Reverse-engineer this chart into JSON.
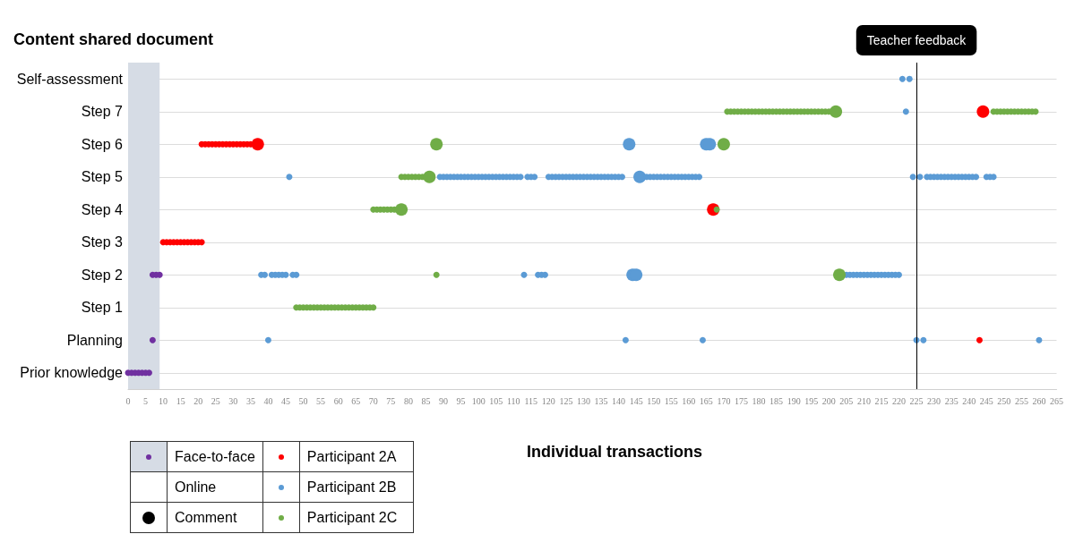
{
  "chart_data": {
    "type": "bubble",
    "orientation": "horizontal",
    "ylabel": "Content shared document",
    "xlabel": "Individual transactions",
    "categories": [
      "Self-assessment",
      "Step 7",
      "Step 6",
      "Step 5",
      "Step 4",
      "Step 3",
      "Step 2",
      "Step 1",
      "Planning",
      "Prior knowledge"
    ],
    "xlim": [
      0,
      265
    ],
    "xticks": [
      0,
      5,
      10,
      15,
      20,
      25,
      30,
      35,
      40,
      45,
      50,
      55,
      60,
      65,
      70,
      75,
      80,
      85,
      90,
      95,
      100,
      105,
      110,
      115,
      120,
      125,
      130,
      135,
      140,
      145,
      150,
      155,
      160,
      165,
      170,
      175,
      180,
      185,
      190,
      195,
      200,
      205,
      210,
      215,
      220,
      225,
      230,
      235,
      240,
      245,
      250,
      255,
      260,
      265
    ],
    "grid": "y",
    "marker": "circle",
    "legend": "bottom left",
    "annotations": [
      "Online",
      "Comment"
    ],
    "bands": [
      {
        "axis": "x",
        "from": 0,
        "to": 9,
        "color": "#d6dce5"
      }
    ],
    "ref_lines": [
      {
        "axis": "x",
        "value": 225,
        "label": "Teacher feedback",
        "color": "#000000"
      }
    ],
    "series": [
      {
        "name": "Face-to-face",
        "color": "#7030a0",
        "values": [
          0,
          1,
          2,
          3,
          4,
          5,
          6,
          7,
          7,
          8,
          9
        ],
        "x": [
          "Prior knowledge",
          "Prior knowledge",
          "Prior knowledge",
          "Prior knowledge",
          "Prior knowledge",
          "Prior knowledge",
          "Prior knowledge",
          "Planning",
          "Step 2",
          "Step 2",
          "Step 2"
        ],
        "sizes": [
          0.25,
          0.25,
          0.25,
          0.25,
          0.25,
          0.25,
          0.25,
          0.25,
          0.25,
          0.25,
          0.25
        ]
      },
      {
        "name": "Participant 2A",
        "color": "#ff0000",
        "values": [
          10,
          11,
          12,
          13,
          14,
          15,
          16,
          17,
          18,
          19,
          20,
          21,
          21,
          22,
          23,
          24,
          25,
          26,
          27,
          28,
          29,
          30,
          31,
          32,
          33,
          34,
          35,
          37,
          167,
          243,
          244
        ],
        "x": [
          "Step 3",
          "Step 3",
          "Step 3",
          "Step 3",
          "Step 3",
          "Step 3",
          "Step 3",
          "Step 3",
          "Step 3",
          "Step 3",
          "Step 3",
          "Step 3",
          "Step 6",
          "Step 6",
          "Step 6",
          "Step 6",
          "Step 6",
          "Step 6",
          "Step 6",
          "Step 6",
          "Step 6",
          "Step 6",
          "Step 6",
          "Step 6",
          "Step 6",
          "Step 6",
          "Step 6",
          "Step 6",
          "Step 4",
          "Planning",
          "Step 7"
        ],
        "sizes": [
          0.25,
          0.25,
          0.25,
          0.25,
          0.25,
          0.25,
          0.25,
          0.25,
          0.25,
          0.25,
          0.25,
          0.25,
          0.25,
          0.25,
          0.25,
          0.25,
          0.25,
          0.25,
          0.25,
          0.25,
          0.25,
          0.25,
          0.25,
          0.25,
          0.25,
          0.25,
          0.25,
          1,
          1,
          0.25,
          1
        ]
      },
      {
        "name": "Participant 2B",
        "color": "#5b9bd5",
        "values": [
          40,
          142,
          164,
          225,
          227,
          260,
          38,
          39,
          41,
          42,
          43,
          44,
          45,
          47,
          48,
          113,
          117,
          118,
          119,
          144,
          145,
          205,
          206,
          207,
          208,
          209,
          210,
          211,
          212,
          213,
          214,
          215,
          216,
          217,
          218,
          219,
          220,
          46,
          89,
          90,
          91,
          92,
          93,
          94,
          95,
          96,
          97,
          98,
          99,
          100,
          101,
          102,
          103,
          104,
          105,
          106,
          107,
          108,
          109,
          110,
          111,
          112,
          114,
          115,
          116,
          120,
          121,
          122,
          123,
          124,
          125,
          126,
          127,
          128,
          129,
          130,
          131,
          132,
          133,
          134,
          135,
          136,
          137,
          138,
          139,
          140,
          141,
          146,
          148,
          149,
          150,
          151,
          152,
          153,
          154,
          155,
          156,
          157,
          158,
          159,
          160,
          161,
          162,
          163,
          224,
          226,
          228,
          229,
          230,
          231,
          232,
          233,
          234,
          235,
          236,
          237,
          238,
          239,
          240,
          241,
          242,
          245,
          246,
          247,
          143,
          165,
          166,
          222,
          221,
          223
        ],
        "x": [
          "Planning",
          "Planning",
          "Planning",
          "Planning",
          "Planning",
          "Planning",
          "Step 2",
          "Step 2",
          "Step 2",
          "Step 2",
          "Step 2",
          "Step 2",
          "Step 2",
          "Step 2",
          "Step 2",
          "Step 2",
          "Step 2",
          "Step 2",
          "Step 2",
          "Step 2",
          "Step 2",
          "Step 2",
          "Step 2",
          "Step 2",
          "Step 2",
          "Step 2",
          "Step 2",
          "Step 2",
          "Step 2",
          "Step 2",
          "Step 2",
          "Step 2",
          "Step 2",
          "Step 2",
          "Step 2",
          "Step 2",
          "Step 2",
          "Step 5",
          "Step 5",
          "Step 5",
          "Step 5",
          "Step 5",
          "Step 5",
          "Step 5",
          "Step 5",
          "Step 5",
          "Step 5",
          "Step 5",
          "Step 5",
          "Step 5",
          "Step 5",
          "Step 5",
          "Step 5",
          "Step 5",
          "Step 5",
          "Step 5",
          "Step 5",
          "Step 5",
          "Step 5",
          "Step 5",
          "Step 5",
          "Step 5",
          "Step 5",
          "Step 5",
          "Step 5",
          "Step 5",
          "Step 5",
          "Step 5",
          "Step 5",
          "Step 5",
          "Step 5",
          "Step 5",
          "Step 5",
          "Step 5",
          "Step 5",
          "Step 5",
          "Step 5",
          "Step 5",
          "Step 5",
          "Step 5",
          "Step 5",
          "Step 5",
          "Step 5",
          "Step 5",
          "Step 5",
          "Step 5",
          "Step 5",
          "Step 5",
          "Step 5",
          "Step 5",
          "Step 5",
          "Step 5",
          "Step 5",
          "Step 5",
          "Step 5",
          "Step 5",
          "Step 5",
          "Step 5",
          "Step 5",
          "Step 5",
          "Step 5",
          "Step 5",
          "Step 5",
          "Step 5",
          "Step 5",
          "Step 5",
          "Step 5",
          "Step 5",
          "Step 5",
          "Step 5",
          "Step 5",
          "Step 5",
          "Step 5",
          "Step 5",
          "Step 5",
          "Step 5",
          "Step 5",
          "Step 5",
          "Step 5",
          "Step 5",
          "Step 5",
          "Step 5",
          "Step 5",
          "Step 5",
          "Step 6",
          "Step 6",
          "Step 6",
          "Step 7",
          "Self-assessment",
          "Self-assessment"
        ],
        "sizes": [
          0.25,
          0.25,
          0.25,
          0.25,
          0.25,
          0.25,
          0.25,
          0.25,
          0.25,
          0.25,
          0.25,
          0.25,
          0.25,
          0.25,
          0.25,
          0.25,
          0.25,
          0.25,
          0.25,
          1,
          1,
          0.25,
          0.25,
          0.25,
          0.25,
          0.25,
          0.25,
          0.25,
          0.25,
          0.25,
          0.25,
          0.25,
          0.25,
          0.25,
          0.25,
          0.25,
          0.25,
          0.25,
          0.25,
          0.25,
          0.25,
          0.25,
          0.25,
          0.25,
          0.25,
          0.25,
          0.25,
          0.25,
          0.25,
          0.25,
          0.25,
          0.25,
          0.25,
          0.25,
          0.25,
          0.25,
          0.25,
          0.25,
          0.25,
          0.25,
          0.25,
          0.25,
          0.25,
          0.25,
          0.25,
          0.25,
          0.25,
          0.25,
          0.25,
          0.25,
          0.25,
          0.25,
          0.25,
          0.25,
          0.25,
          0.25,
          0.25,
          0.25,
          0.25,
          0.25,
          0.25,
          0.25,
          0.25,
          0.25,
          0.25,
          0.25,
          0.25,
          1,
          0.25,
          0.25,
          0.25,
          0.25,
          0.25,
          0.25,
          0.25,
          0.25,
          0.25,
          0.25,
          0.25,
          0.25,
          0.25,
          0.25,
          0.25,
          0.25,
          0.25,
          0.25,
          0.25,
          0.25,
          0.25,
          0.25,
          0.25,
          0.25,
          0.25,
          0.25,
          0.25,
          0.25,
          0.25,
          0.25,
          0.25,
          0.25,
          0.25,
          0.25,
          0.25,
          0.25,
          1,
          1,
          1,
          0.25,
          0.25,
          0.25
        ]
      },
      {
        "name": "Participant 2C",
        "color": "#70ad47",
        "values": [
          48,
          49,
          50,
          51,
          52,
          53,
          54,
          55,
          56,
          57,
          58,
          59,
          60,
          61,
          62,
          63,
          64,
          65,
          66,
          67,
          68,
          69,
          70,
          70,
          71,
          72,
          73,
          74,
          75,
          76,
          78,
          168,
          78,
          79,
          80,
          81,
          82,
          83,
          84,
          86,
          88,
          203,
          88,
          170,
          171,
          172,
          173,
          174,
          175,
          176,
          177,
          178,
          179,
          180,
          181,
          182,
          183,
          184,
          185,
          186,
          187,
          188,
          189,
          190,
          191,
          192,
          193,
          194,
          195,
          196,
          197,
          198,
          199,
          200,
          202,
          247,
          248,
          249,
          250,
          251,
          252,
          253,
          254,
          255,
          256,
          257,
          258,
          259
        ],
        "x": [
          "Step 1",
          "Step 1",
          "Step 1",
          "Step 1",
          "Step 1",
          "Step 1",
          "Step 1",
          "Step 1",
          "Step 1",
          "Step 1",
          "Step 1",
          "Step 1",
          "Step 1",
          "Step 1",
          "Step 1",
          "Step 1",
          "Step 1",
          "Step 1",
          "Step 1",
          "Step 1",
          "Step 1",
          "Step 1",
          "Step 1",
          "Step 4",
          "Step 4",
          "Step 4",
          "Step 4",
          "Step 4",
          "Step 4",
          "Step 4",
          "Step 4",
          "Step 4",
          "Step 5",
          "Step 5",
          "Step 5",
          "Step 5",
          "Step 5",
          "Step 5",
          "Step 5",
          "Step 5",
          "Step 2",
          "Step 2",
          "Step 6",
          "Step 6",
          "Step 7",
          "Step 7",
          "Step 7",
          "Step 7",
          "Step 7",
          "Step 7",
          "Step 7",
          "Step 7",
          "Step 7",
          "Step 7",
          "Step 7",
          "Step 7",
          "Step 7",
          "Step 7",
          "Step 7",
          "Step 7",
          "Step 7",
          "Step 7",
          "Step 7",
          "Step 7",
          "Step 7",
          "Step 7",
          "Step 7",
          "Step 7",
          "Step 7",
          "Step 7",
          "Step 7",
          "Step 7",
          "Step 7",
          "Step 7",
          "Step 7",
          "Step 7",
          "Step 7",
          "Step 7",
          "Step 7",
          "Step 7",
          "Step 7",
          "Step 7",
          "Step 7",
          "Step 7",
          "Step 7",
          "Step 7",
          "Step 7",
          "Step 7"
        ],
        "sizes": [
          0.25,
          0.25,
          0.25,
          0.25,
          0.25,
          0.25,
          0.25,
          0.25,
          0.25,
          0.25,
          0.25,
          0.25,
          0.25,
          0.25,
          0.25,
          0.25,
          0.25,
          0.25,
          0.25,
          0.25,
          0.25,
          0.25,
          0.25,
          0.25,
          0.25,
          0.25,
          0.25,
          0.25,
          0.25,
          0.25,
          1,
          0.25,
          0.25,
          0.25,
          0.25,
          0.25,
          0.25,
          0.25,
          0.25,
          1,
          0.25,
          1,
          1,
          1,
          0.25,
          0.25,
          0.25,
          0.25,
          0.25,
          0.25,
          0.25,
          0.25,
          0.25,
          0.25,
          0.25,
          0.25,
          0.25,
          0.25,
          0.25,
          0.25,
          0.25,
          0.25,
          0.25,
          0.25,
          0.25,
          0.25,
          0.25,
          0.25,
          0.25,
          0.25,
          0.25,
          0.25,
          0.25,
          0.25,
          1,
          0.25,
          0.25,
          0.25,
          0.25,
          0.25,
          0.25,
          0.25,
          0.25,
          0.25,
          0.25,
          0.25,
          0.25,
          0.25
        ]
      }
    ]
  }
}
